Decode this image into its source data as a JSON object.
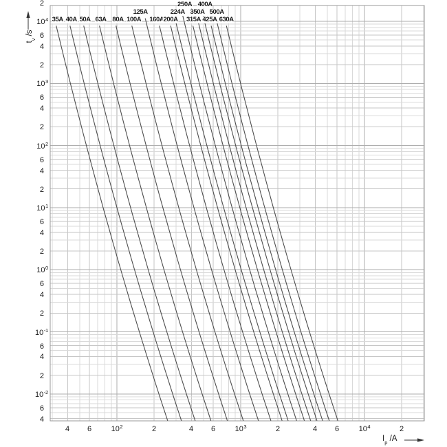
{
  "chart_data": {
    "type": "line",
    "title": "",
    "description": "Time-current characteristic curves (pre-arcing time vs prospective current) for fuse ratings 35A to 630A, log-log grid",
    "x_title": {
      "main": "I",
      "sub": "p",
      "rest": " /A"
    },
    "y_title": {
      "main": "t",
      "sub": "v",
      "rest": " /s"
    },
    "xlim": [
      29,
      30000
    ],
    "ylim": [
      0.0037,
      18000
    ],
    "grid": "log-log minor grid, decades 10^1..10^4 (x) and 10^-2..10^4 (y)",
    "legend_position": "labels at top of each curve",
    "x_ticks": [
      {
        "v": 40,
        "l": "4"
      },
      {
        "v": 60,
        "l": "6"
      },
      {
        "v": 100,
        "l": "10",
        "e": "2"
      },
      {
        "v": 200,
        "l": "2"
      },
      {
        "v": 400,
        "l": "4"
      },
      {
        "v": 600,
        "l": "6"
      },
      {
        "v": 1000,
        "l": "10",
        "e": "3"
      },
      {
        "v": 2000,
        "l": "2"
      },
      {
        "v": 4000,
        "l": "4"
      },
      {
        "v": 6000,
        "l": "6"
      },
      {
        "v": 10000,
        "l": "10",
        "e": "4"
      },
      {
        "v": 20000,
        "l": "2"
      }
    ],
    "y_ticks": [
      {
        "v": 20000,
        "l": "2"
      },
      {
        "v": 10000,
        "l": "10",
        "e": "4"
      },
      {
        "v": 6000,
        "l": "6"
      },
      {
        "v": 4000,
        "l": "4"
      },
      {
        "v": 2000,
        "l": "2"
      },
      {
        "v": 1000,
        "l": "10",
        "e": "3"
      },
      {
        "v": 600,
        "l": "6"
      },
      {
        "v": 400,
        "l": "4"
      },
      {
        "v": 200,
        "l": "2"
      },
      {
        "v": 100,
        "l": "10",
        "e": "2"
      },
      {
        "v": 60,
        "l": "6"
      },
      {
        "v": 40,
        "l": "4"
      },
      {
        "v": 20,
        "l": "2"
      },
      {
        "v": 10,
        "l": "10",
        "e": "1"
      },
      {
        "v": 6,
        "l": "6"
      },
      {
        "v": 4,
        "l": "4"
      },
      {
        "v": 2,
        "l": "2"
      },
      {
        "v": 1,
        "l": "10",
        "e": "0"
      },
      {
        "v": 0.6,
        "l": "6"
      },
      {
        "v": 0.4,
        "l": "4"
      },
      {
        "v": 0.2,
        "l": "2"
      },
      {
        "v": 0.1,
        "l": "10",
        "e": "-1"
      },
      {
        "v": 0.06,
        "l": "6"
      },
      {
        "v": 0.04,
        "l": "4"
      },
      {
        "v": 0.02,
        "l": "2"
      },
      {
        "v": 0.01,
        "l": "10",
        "e": "-2"
      },
      {
        "v": 0.006,
        "l": "6"
      },
      {
        "v": 0.004,
        "l": "4"
      }
    ],
    "curve_model": {
      "form": "log10(I) = log10(I_10s) + (1 - log10(t)) / n(log10 t)",
      "n_ref": 7.2,
      "k": 0.18,
      "logt_ref": 1,
      "time_start_s_by_row": {
        "1": 15500,
        "2": 11200,
        "3": 8500
      },
      "time_end_s": 0.0037
    },
    "series": [
      {
        "name": "35A",
        "rating_A": 35,
        "current_A_at_10s": 77.4,
        "current_A_at_0p01s": 218,
        "row": 3,
        "label_dx": 2
      },
      {
        "name": "40A",
        "rating_A": 40,
        "current_A_at_10s": 100,
        "current_A_at_0p01s": 282,
        "row": 3,
        "label_dx": 2
      },
      {
        "name": "50A",
        "rating_A": 50,
        "current_A_at_10s": 129,
        "current_A_at_0p01s": 364,
        "row": 3,
        "label_dx": 2
      },
      {
        "name": "63A",
        "rating_A": 63,
        "current_A_at_10s": 173,
        "current_A_at_0p01s": 489,
        "row": 3,
        "label_dx": 2
      },
      {
        "name": "80A",
        "rating_A": 80,
        "current_A_at_10s": 235,
        "current_A_at_0p01s": 664,
        "row": 3,
        "label_dx": 3
      },
      {
        "name": "100A",
        "rating_A": 100,
        "current_A_at_10s": 316,
        "current_A_at_0p01s": 891,
        "row": 3,
        "label_dx": 3
      },
      {
        "name": "125A",
        "rating_A": 125,
        "current_A_at_10s": 419,
        "current_A_at_0p01s": 1180,
        "row": 2,
        "label_dx": -7
      },
      {
        "name": "160A",
        "rating_A": 160,
        "current_A_at_10s": 528,
        "current_A_at_0p01s": 1490,
        "row": 3,
        "label_dx": -4
      },
      {
        "name": "200A",
        "rating_A": 200,
        "current_A_at_10s": 650,
        "current_A_at_0p01s": 1830,
        "row": 3,
        "label_dx": 0
      },
      {
        "name": "224A",
        "rating_A": 224,
        "current_A_at_10s": 728,
        "current_A_at_0p01s": 2050,
        "row": 2,
        "label_dx": 4
      },
      {
        "name": "250A",
        "rating_A": 250,
        "current_A_at_10s": 852,
        "current_A_at_0p01s": 2400,
        "row": 1,
        "label_dx": 5
      },
      {
        "name": "315A",
        "rating_A": 315,
        "current_A_at_10s": 984,
        "current_A_at_0p01s": 2780,
        "row": 3,
        "label_dx": 1
      },
      {
        "name": "350A",
        "rating_A": 350,
        "current_A_at_10s": 1106,
        "current_A_at_0p01s": 3120,
        "row": 2,
        "label_dx": 0
      },
      {
        "name": "400A",
        "rating_A": 400,
        "current_A_at_10s": 1244,
        "current_A_at_0p01s": 3510,
        "row": 1,
        "label_dx": 5
      },
      {
        "name": "425A",
        "rating_A": 425,
        "current_A_at_10s": 1381,
        "current_A_at_0p01s": 3890,
        "row": 3,
        "label_dx": -2
      },
      {
        "name": "500A",
        "rating_A": 500,
        "current_A_at_10s": 1564,
        "current_A_at_0p01s": 4410,
        "row": 2,
        "label_dx": 1
      },
      {
        "name": "630A",
        "rating_A": 630,
        "current_A_at_10s": 1835,
        "current_A_at_0p01s": 5180,
        "row": 3,
        "label_dx": 0
      }
    ],
    "colors": {
      "background": "#ffffff",
      "grid_minor": "#d9d9d9",
      "grid_labeled_minor": "#c6c6c6",
      "grid_decade": "#adadad",
      "border": "#999999",
      "curve": "#4d4d4d",
      "text": "#1a1a1a"
    }
  }
}
